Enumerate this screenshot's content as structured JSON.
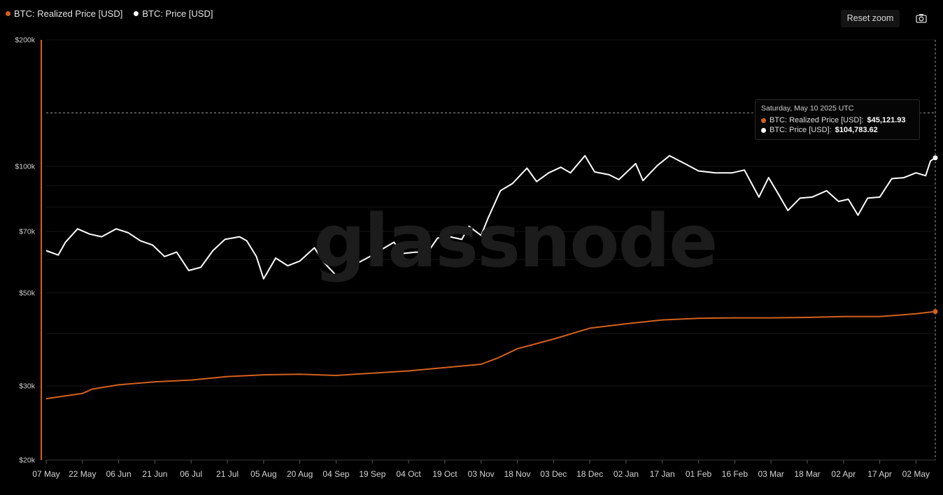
{
  "legend": [
    {
      "label": "BTC: Realized Price [USD]",
      "color": "#d4601e"
    },
    {
      "label": "BTC: Price [USD]",
      "color": "#ffffff"
    }
  ],
  "toolbar": {
    "reset_zoom_label": "Reset zoom",
    "camera_icon": "camera-icon"
  },
  "watermark": "glassnode",
  "tooltip": {
    "date": "Saturday, May 10 2025 UTC",
    "rows": [
      {
        "label": "BTC: Realized Price [USD]:",
        "value": "$45,121.93",
        "color": "#d4601e"
      },
      {
        "label": "BTC: Price [USD]:",
        "value": "$104,783.62",
        "color": "#ffffff"
      }
    ]
  },
  "chart_data": {
    "type": "line",
    "y_scale": "log",
    "ylim": [
      20000,
      200000
    ],
    "y_ticks": [
      {
        "value": 200000,
        "label": "$200k"
      },
      {
        "value": 100000,
        "label": "$100k"
      },
      {
        "value": 70000,
        "label": "$70k"
      },
      {
        "value": 50000,
        "label": "$50k"
      },
      {
        "value": 30000,
        "label": "$30k"
      },
      {
        "value": 20000,
        "label": "$20k"
      }
    ],
    "x_range": [
      "2024-05-07",
      "2025-05-10"
    ],
    "x_ticks": [
      "07 May",
      "22 May",
      "06 Jun",
      "21 Jun",
      "06 Jul",
      "21 Jul",
      "05 Aug",
      "20 Aug",
      "04 Sep",
      "19 Sep",
      "04 Oct",
      "19 Oct",
      "03 Nov",
      "18 Nov",
      "03 Dec",
      "18 Dec",
      "02 Jan",
      "17 Jan",
      "01 Feb",
      "16 Feb",
      "03 Mar",
      "18 Mar",
      "02 Apr",
      "17 Apr",
      "02 May"
    ],
    "series": [
      {
        "name": "BTC: Price [USD]",
        "color": "#ffffff",
        "points": [
          [
            "2024-05-07",
            63000
          ],
          [
            "2024-05-12",
            61500
          ],
          [
            "2024-05-15",
            66000
          ],
          [
            "2024-05-20",
            71000
          ],
          [
            "2024-05-25",
            69000
          ],
          [
            "2024-05-30",
            68000
          ],
          [
            "2024-06-05",
            71000
          ],
          [
            "2024-06-10",
            69500
          ],
          [
            "2024-06-15",
            66500
          ],
          [
            "2024-06-20",
            65000
          ],
          [
            "2024-06-25",
            61000
          ],
          [
            "2024-06-30",
            62500
          ],
          [
            "2024-07-05",
            56500
          ],
          [
            "2024-07-10",
            57500
          ],
          [
            "2024-07-15",
            63000
          ],
          [
            "2024-07-20",
            67000
          ],
          [
            "2024-07-26",
            68000
          ],
          [
            "2024-07-29",
            66500
          ],
          [
            "2024-08-02",
            61000
          ],
          [
            "2024-08-05",
            54000
          ],
          [
            "2024-08-10",
            60500
          ],
          [
            "2024-08-15",
            58000
          ],
          [
            "2024-08-20",
            59500
          ],
          [
            "2024-08-26",
            64000
          ],
          [
            "2024-08-30",
            59000
          ],
          [
            "2024-09-06",
            53500
          ],
          [
            "2024-09-12",
            58500
          ],
          [
            "2024-09-18",
            61000
          ],
          [
            "2024-09-23",
            63500
          ],
          [
            "2024-09-28",
            66000
          ],
          [
            "2024-10-01",
            62000
          ],
          [
            "2024-10-07",
            62500
          ],
          [
            "2024-10-12",
            62500
          ],
          [
            "2024-10-16",
            67500
          ],
          [
            "2024-10-21",
            68000
          ],
          [
            "2024-10-26",
            67000
          ],
          [
            "2024-10-29",
            72000
          ],
          [
            "2024-11-03",
            68500
          ],
          [
            "2024-11-06",
            75500
          ],
          [
            "2024-11-11",
            87500
          ],
          [
            "2024-11-16",
            91000
          ],
          [
            "2024-11-22",
            99000
          ],
          [
            "2024-11-26",
            92000
          ],
          [
            "2024-12-01",
            96500
          ],
          [
            "2024-12-06",
            99500
          ],
          [
            "2024-12-10",
            96500
          ],
          [
            "2024-12-16",
            106000
          ],
          [
            "2024-12-20",
            97000
          ],
          [
            "2024-12-26",
            95500
          ],
          [
            "2024-12-30",
            93000
          ],
          [
            "2025-01-06",
            101500
          ],
          [
            "2025-01-09",
            92500
          ],
          [
            "2025-01-15",
            100500
          ],
          [
            "2025-01-20",
            106000
          ],
          [
            "2025-01-27",
            101000
          ],
          [
            "2025-02-01",
            97500
          ],
          [
            "2025-02-08",
            96500
          ],
          [
            "2025-02-15",
            96500
          ],
          [
            "2025-02-20",
            98000
          ],
          [
            "2025-02-26",
            84500
          ],
          [
            "2025-03-02",
            94000
          ],
          [
            "2025-03-05",
            88000
          ],
          [
            "2025-03-10",
            78500
          ],
          [
            "2025-03-15",
            84000
          ],
          [
            "2025-03-20",
            84500
          ],
          [
            "2025-03-26",
            87500
          ],
          [
            "2025-03-31",
            82500
          ],
          [
            "2025-04-04",
            83500
          ],
          [
            "2025-04-08",
            76500
          ],
          [
            "2025-04-12",
            84000
          ],
          [
            "2025-04-17",
            84500
          ],
          [
            "2025-04-22",
            93500
          ],
          [
            "2025-04-27",
            94000
          ],
          [
            "2025-05-02",
            96500
          ],
          [
            "2025-05-06",
            95000
          ],
          [
            "2025-05-08",
            103000
          ],
          [
            "2025-05-10",
            104783.62
          ]
        ]
      },
      {
        "name": "BTC: Realized Price [USD]",
        "color": "#d4601e",
        "points": [
          [
            "2024-05-07",
            28000
          ],
          [
            "2024-05-22",
            28800
          ],
          [
            "2024-05-26",
            29500
          ],
          [
            "2024-06-06",
            30200
          ],
          [
            "2024-06-21",
            30700
          ],
          [
            "2024-07-06",
            31000
          ],
          [
            "2024-07-21",
            31600
          ],
          [
            "2024-08-05",
            31900
          ],
          [
            "2024-08-20",
            32000
          ],
          [
            "2024-09-04",
            31800
          ],
          [
            "2024-09-19",
            32200
          ],
          [
            "2024-10-04",
            32600
          ],
          [
            "2024-10-19",
            33200
          ],
          [
            "2024-11-03",
            33800
          ],
          [
            "2024-11-10",
            35000
          ],
          [
            "2024-11-18",
            36800
          ],
          [
            "2024-12-03",
            38800
          ],
          [
            "2024-12-18",
            41200
          ],
          [
            "2025-01-02",
            42200
          ],
          [
            "2025-01-17",
            43100
          ],
          [
            "2025-02-01",
            43500
          ],
          [
            "2025-02-16",
            43600
          ],
          [
            "2025-03-03",
            43600
          ],
          [
            "2025-03-18",
            43700
          ],
          [
            "2025-04-02",
            43900
          ],
          [
            "2025-04-17",
            43900
          ],
          [
            "2025-05-02",
            44600
          ],
          [
            "2025-05-10",
            45121.93
          ]
        ]
      }
    ]
  }
}
